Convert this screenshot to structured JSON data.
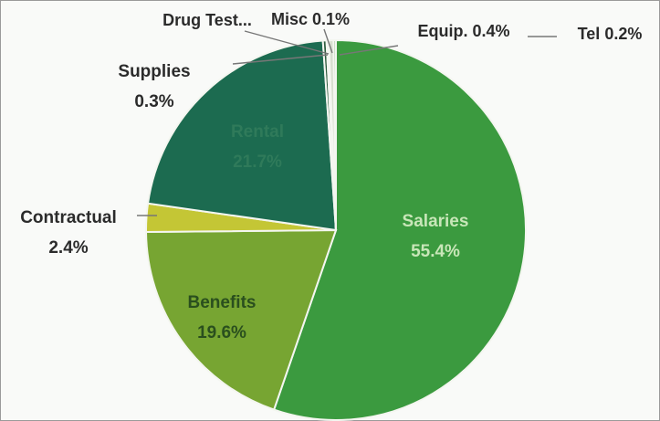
{
  "chart_data": {
    "type": "pie",
    "title": "",
    "slices": [
      {
        "label": "Salaries",
        "value": 55.4,
        "display": "55.4%",
        "color": "#3b9a3f"
      },
      {
        "label": "Benefits",
        "value": 19.6,
        "display": "19.6%",
        "color": "#77a532"
      },
      {
        "label": "Contractual",
        "value": 2.4,
        "display": "2.4%",
        "color": "#c4c635"
      },
      {
        "label": "Rental",
        "value": 21.7,
        "display": "21.7%",
        "color": "#1c6b50"
      },
      {
        "label": "Supplies",
        "value": 0.3,
        "display": "0.3%",
        "color": "#2f5b3e"
      },
      {
        "label": "Drug Test...",
        "value": 0.1,
        "display": "",
        "color": "#4a6a4a"
      },
      {
        "label": "Misc",
        "value": 0.1,
        "display": "0.1%",
        "color": "#8a9a6a"
      },
      {
        "label": "Equip.",
        "value": 0.4,
        "display": "0.4%",
        "color": "#d8dfd0"
      },
      {
        "label": "Tel",
        "value": 0.2,
        "display": "0.2%",
        "color": "#a9c9a0"
      }
    ]
  }
}
